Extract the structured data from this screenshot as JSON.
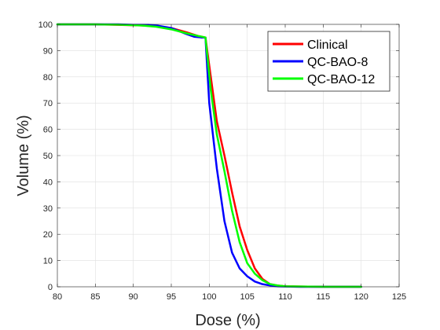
{
  "chart_data": {
    "type": "line",
    "xlabel": "Dose (%)",
    "ylabel": "Volume (%)",
    "xlim": [
      80,
      125
    ],
    "ylim": [
      0,
      100
    ],
    "xticks": [
      80,
      85,
      90,
      95,
      100,
      105,
      110,
      115,
      120,
      125
    ],
    "yticks": [
      0,
      10,
      20,
      30,
      40,
      50,
      60,
      70,
      80,
      90,
      100
    ],
    "grid": true,
    "legend_position": "top-right",
    "series": [
      {
        "name": "Clinical",
        "color": "#ff0000",
        "x": [
          80,
          85,
          88,
          91,
          93,
          95,
          97,
          98.5,
          99.5,
          100.2,
          101,
          102,
          103,
          104,
          105,
          106,
          107,
          108,
          109,
          110,
          112,
          115,
          120
        ],
        "y": [
          100,
          100,
          99.8,
          99.6,
          99.3,
          98.6,
          97,
          95.6,
          95,
          80,
          63,
          50,
          36,
          23,
          14,
          7,
          3,
          1,
          0.5,
          0.2,
          0.1,
          0,
          0
        ]
      },
      {
        "name": "QC-BAO-8",
        "color": "#0000ff",
        "x": [
          80,
          85,
          88,
          90,
          92,
          93,
          95,
          97,
          98,
          99,
          99.5,
          100,
          101,
          102,
          103,
          104,
          105,
          106,
          107,
          108,
          109,
          110,
          112,
          115,
          120
        ],
        "y": [
          100,
          100,
          100,
          99.8,
          99.8,
          99.6,
          98.6,
          96.3,
          95.3,
          95,
          95,
          70,
          45,
          25,
          13,
          7,
          4,
          2,
          1,
          0.5,
          0.2,
          0.1,
          0,
          0,
          0
        ]
      },
      {
        "name": "QC-BAO-12",
        "color": "#00ff00",
        "x": [
          80,
          85,
          88,
          91,
          93,
          95,
          97,
          98.5,
          99.5,
          100.2,
          101,
          102,
          103,
          104,
          105,
          106,
          107,
          108,
          109,
          110,
          112,
          115,
          120
        ],
        "y": [
          100,
          100,
          99.9,
          99.6,
          99.1,
          98.1,
          96.6,
          95.6,
          95,
          75,
          58,
          44,
          29,
          17,
          9,
          5,
          2.5,
          1,
          0.5,
          0.2,
          0.1,
          0,
          0
        ]
      }
    ]
  }
}
